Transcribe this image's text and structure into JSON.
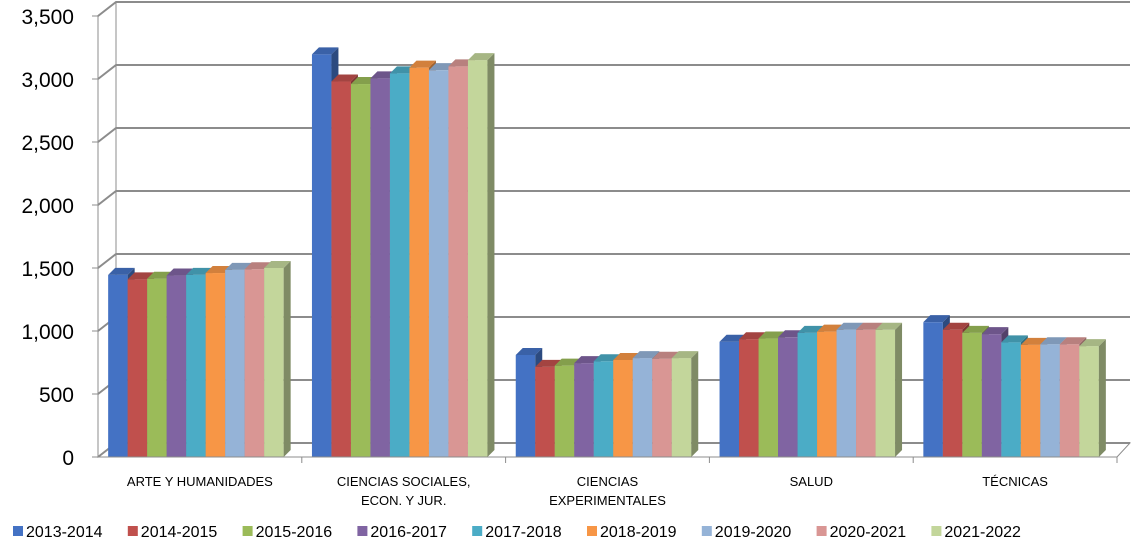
{
  "chart_data": {
    "type": "bar",
    "style": "3d-clustered-column",
    "categories": [
      [
        "ARTE Y HUMANIDADES"
      ],
      [
        "CIENCIAS SOCIALES,",
        "ECON. Y JUR."
      ],
      [
        "CIENCIAS",
        "EXPERIMENTALES"
      ],
      [
        "SALUD"
      ],
      [
        "TÉCNICAS"
      ]
    ],
    "series": [
      {
        "name": "2013-2014",
        "color": "#4472C4",
        "values": [
          1445,
          3195,
          810,
          915,
          1070
        ]
      },
      {
        "name": "2014-2015",
        "color": "#C0504D",
        "values": [
          1410,
          2980,
          715,
          935,
          1010
        ]
      },
      {
        "name": "2015-2016",
        "color": "#9BBB59",
        "values": [
          1415,
          2960,
          725,
          940,
          985
        ]
      },
      {
        "name": "2016-2017",
        "color": "#8064A2",
        "values": [
          1440,
          3005,
          745,
          950,
          975
        ]
      },
      {
        "name": "2017-2018",
        "color": "#4BACC6",
        "values": [
          1445,
          3045,
          760,
          985,
          910
        ]
      },
      {
        "name": "2018-2019",
        "color": "#F79646",
        "values": [
          1460,
          3090,
          770,
          995,
          890
        ]
      },
      {
        "name": "2019-2020",
        "color": "#95B3D7",
        "values": [
          1485,
          3070,
          785,
          1010,
          895
        ]
      },
      {
        "name": "2020-2021",
        "color": "#D99694",
        "values": [
          1490,
          3100,
          780,
          1010,
          895
        ]
      },
      {
        "name": "2021-2022",
        "color": "#C3D69B",
        "values": [
          1500,
          3150,
          785,
          1010,
          880
        ]
      }
    ],
    "yticks": [
      "0",
      "500",
      "1,000",
      "1,500",
      "2,000",
      "2,500",
      "3,000",
      "3,500"
    ],
    "ylim": [
      0,
      3500
    ],
    "grid": true,
    "legend_position": "bottom"
  }
}
